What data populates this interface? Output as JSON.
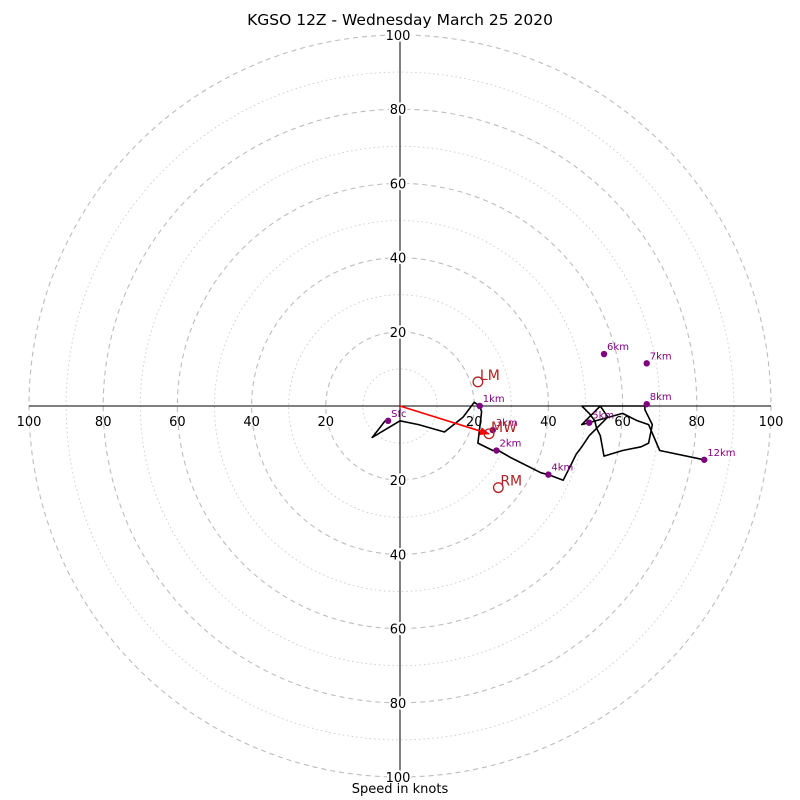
{
  "chart_data": {
    "type": "hodograph",
    "title": "KGSO 12Z - Wednesday March 25 2020",
    "xlabel": "Speed in knots",
    "range": 100,
    "ring_interval_major": 20,
    "ring_interval_minor": 10,
    "tick_labels": [
      "100",
      "80",
      "60",
      "40",
      "20",
      "20",
      "40",
      "60",
      "80",
      "100"
    ],
    "colors": {
      "hodograph_line": "#000000",
      "height_markers": "#800080",
      "storm_motion": "#b22222",
      "mean_wind_vector": "#ff0000",
      "rings": "#bdbdbd"
    },
    "hodograph": {
      "u": [
        -3.2,
        -4,
        -7.5,
        0,
        5,
        12,
        17,
        20,
        21.5,
        22,
        21,
        25,
        26,
        26.5,
        30,
        38,
        40,
        44,
        46,
        47.5,
        49,
        51,
        53,
        56,
        54,
        52,
        50,
        49,
        50,
        51,
        52.5,
        53,
        54,
        55,
        60,
        65,
        67,
        68,
        66,
        66,
        62,
        58,
        54,
        52,
        50,
        49,
        60,
        64,
        67,
        70,
        82
      ],
      "v": [
        -4,
        -4,
        -8.5,
        -4,
        -5,
        -7,
        -3,
        1,
        0,
        -1.5,
        -10,
        -12,
        -12,
        -12,
        -14,
        -18,
        -18.5,
        -20,
        -16,
        -13,
        -11,
        -8,
        -6,
        -3,
        0,
        0,
        0,
        0,
        -1,
        -2,
        -4,
        -6,
        -8,
        -13.5,
        -12,
        -11,
        -10,
        -5,
        -1,
        0,
        0,
        0,
        0,
        -2,
        -4,
        -5,
        -2,
        -4,
        -5,
        -12,
        -14.5
      ]
    },
    "height_markers": [
      {
        "label": "SFC",
        "display": "Sfc",
        "u": -3.2,
        "v": -4
      },
      {
        "label": "1km",
        "u": 21.5,
        "v": 0
      },
      {
        "label": "2km",
        "u": 26,
        "v": -12
      },
      {
        "label": "3km",
        "u": 25,
        "v": -6.5
      },
      {
        "label": "4km",
        "u": 40,
        "v": -18.5
      },
      {
        "label": "5km",
        "u": 51,
        "v": -4.5
      },
      {
        "label": "6km",
        "u": 55,
        "v": 14
      },
      {
        "label": "7km",
        "u": 66.5,
        "v": 11.5
      },
      {
        "label": "8km",
        "u": 66.5,
        "v": 0.5
      },
      {
        "label": "12km",
        "u": 82,
        "v": -14.5
      }
    ],
    "storm_motion": [
      {
        "label": "LM",
        "u": 21,
        "v": 6.5
      },
      {
        "label": "RM",
        "u": 26.5,
        "v": -22
      },
      {
        "label": "MW",
        "u": 24,
        "v": -7.5
      }
    ],
    "mean_wind_vector": {
      "u": 24,
      "v": -7.5
    }
  }
}
